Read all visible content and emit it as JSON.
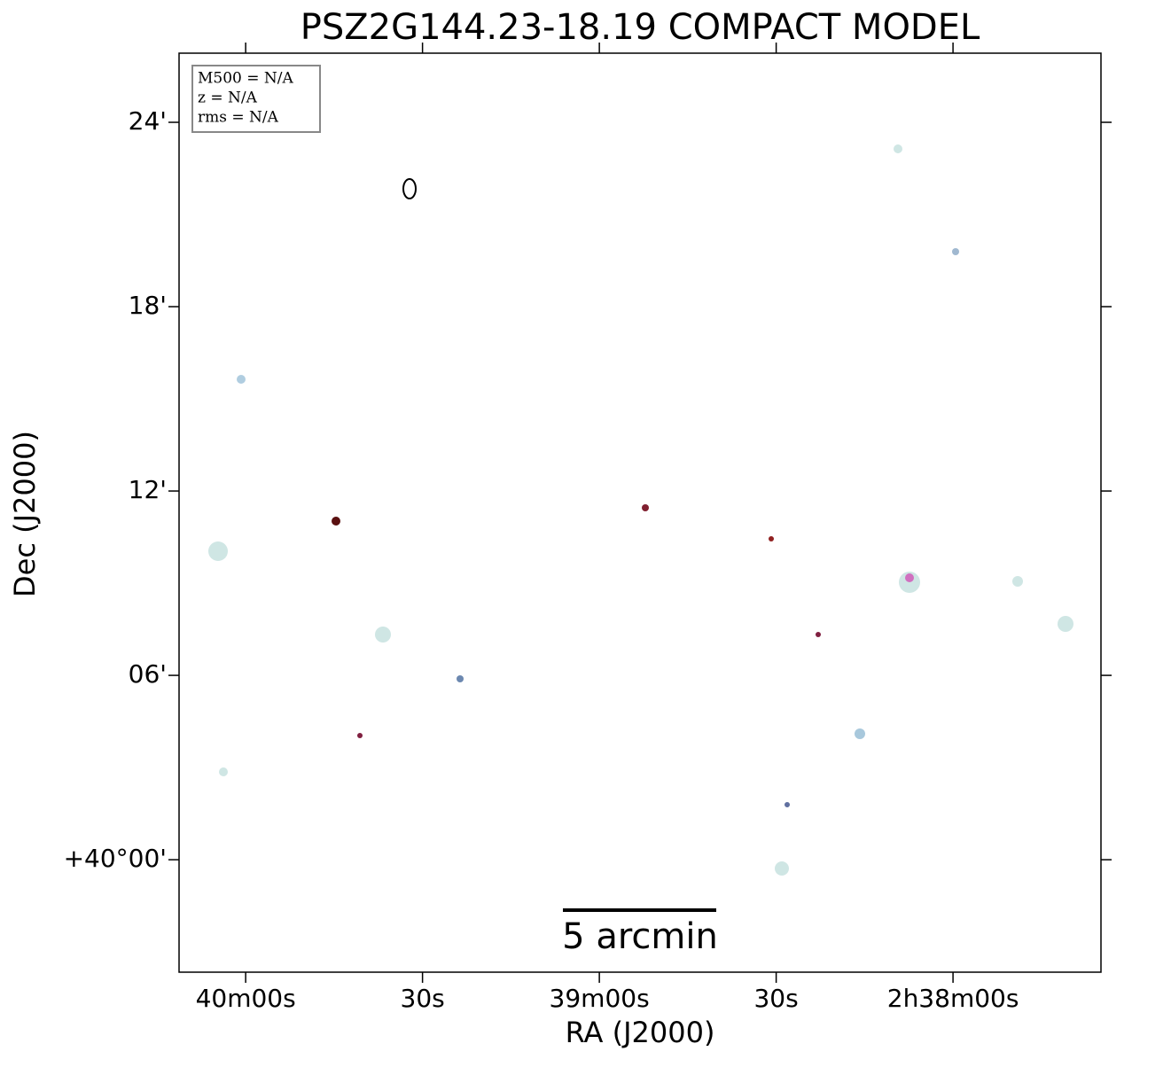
{
  "chart_data": {
    "type": "image",
    "title": "PSZ2G144.23-18.19 COMPACT MODEL",
    "x_label": "RA (J2000)",
    "y_label": "Dec (J2000)",
    "xlim": [
      2411.3,
      2254.9
    ],
    "ylim": [
      -3.66,
      26.25
    ],
    "xticks": [
      {
        "value": 2400,
        "label": "40m00s"
      },
      {
        "value": 2370,
        "label": "30s"
      },
      {
        "value": 2340,
        "label": "39m00s"
      },
      {
        "value": 2310,
        "label": "30s"
      },
      {
        "value": 2280,
        "label": "2h38m00s"
      }
    ],
    "yticks": [
      {
        "value": 0,
        "label": "+40°00'"
      },
      {
        "value": 6,
        "label": "06'"
      },
      {
        "value": 12,
        "label": "12'"
      },
      {
        "value": 18,
        "label": "18'"
      },
      {
        "value": 24,
        "label": "24'"
      }
    ],
    "info": [
      "M500 = N/A",
      "z = N/A",
      "rms = N/A"
    ],
    "scale_bar": "5 arcmin"
  }
}
